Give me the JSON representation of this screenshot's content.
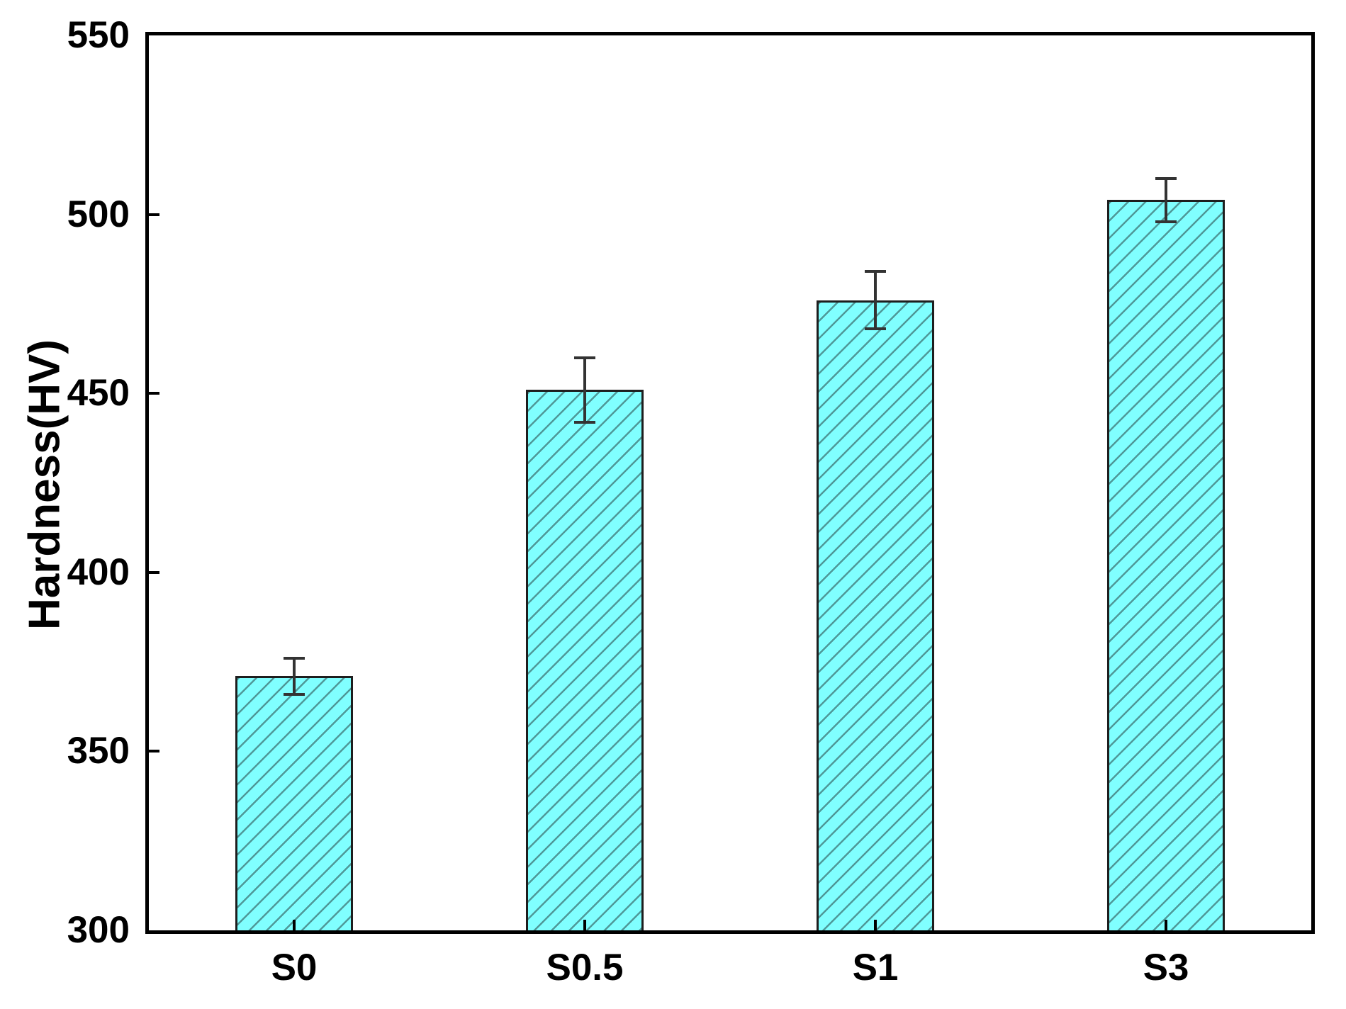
{
  "figure": {
    "background_color": "#ffffff"
  },
  "chart_data": {
    "type": "bar",
    "title": "",
    "xlabel": "",
    "ylabel": "Hardness(HV)",
    "categories": [
      "S0",
      "S0.5",
      "S1",
      "S3"
    ],
    "values": [
      371,
      451,
      476,
      504
    ],
    "error_bars": [
      5,
      9,
      8,
      6
    ],
    "ylim": [
      300,
      550
    ],
    "yticks": [
      300,
      350,
      400,
      450,
      500,
      550
    ],
    "grid": false,
    "legend": null,
    "frame": "full-box",
    "tick_direction": "in",
    "bar_fill_color": "#80ffff",
    "bar_hatch_color": "#4f9898",
    "bar_hatch_pattern": "forward-diagonal",
    "bar_edge_color": "#1e1e1e",
    "error_bar_color": "#333333",
    "axis_color": "#000000",
    "label_color": "#000000"
  }
}
